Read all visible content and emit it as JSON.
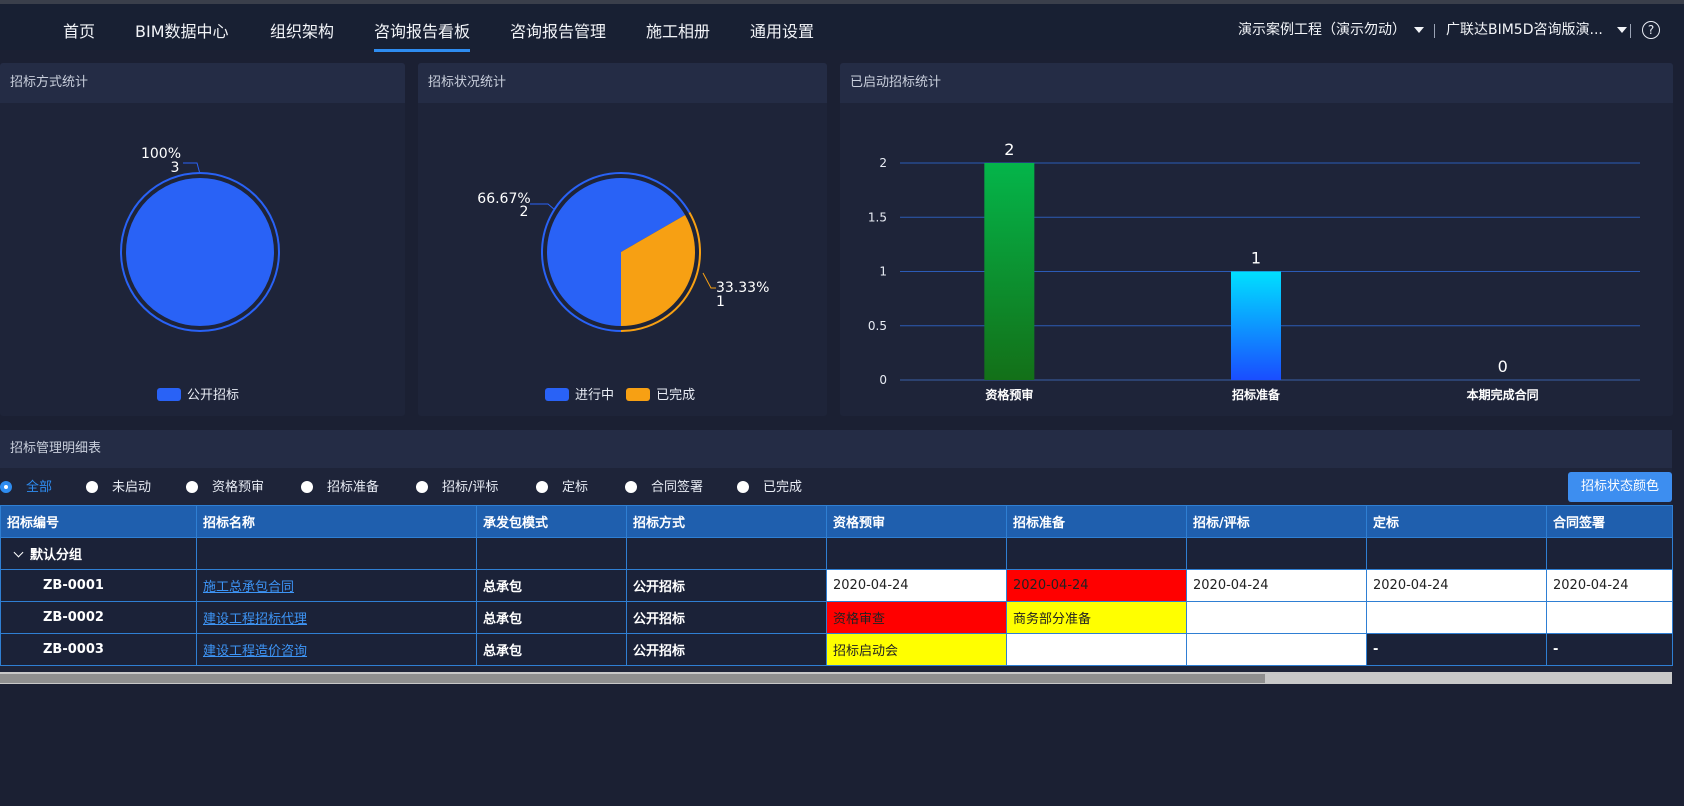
{
  "nav": {
    "items": [
      {
        "label": "首页"
      },
      {
        "label": "BIM数据中心"
      },
      {
        "label": "组织架构"
      },
      {
        "label": "咨询报告看板"
      },
      {
        "label": "咨询报告管理"
      },
      {
        "label": "施工相册"
      },
      {
        "label": "通用设置"
      }
    ],
    "active_index": 3,
    "project_select": "演示案例工程（演示勿动）",
    "org_select": "广联达BIM5D咨询版演...",
    "help_icon": "question-circle-icon"
  },
  "panels": {
    "bid_method": {
      "title": "招标方式统计",
      "chart_data": {
        "type": "pie",
        "categories": [
          "公开招标"
        ],
        "values": [
          3
        ],
        "labels": [
          {
            "percent": "100%",
            "count": "3"
          }
        ],
        "legend": [
          "公开招标"
        ],
        "colors": [
          "#2962f6"
        ]
      }
    },
    "bid_status": {
      "title": "招标状况统计",
      "chart_data": {
        "type": "pie",
        "categories": [
          "进行中",
          "已完成"
        ],
        "values": [
          2,
          1
        ],
        "labels": [
          {
            "percent": "66.67%",
            "count": "2"
          },
          {
            "percent": "33.33%",
            "count": "1"
          }
        ],
        "legend": [
          "进行中",
          "已完成"
        ],
        "colors": [
          "#2962f6",
          "#f7a013"
        ]
      }
    },
    "started": {
      "title": "已启动招标统计",
      "chart_data": {
        "type": "bar",
        "categories": [
          "资格预审",
          "招标准备",
          "本期完成合同"
        ],
        "values": [
          2,
          1,
          0
        ],
        "ylim": [
          0,
          2
        ],
        "yticks": [
          "0",
          "0.5",
          "1",
          "1.5",
          "2"
        ],
        "grid": true
      }
    }
  },
  "detail": {
    "title": "招标管理明细表",
    "filters": [
      {
        "label": "全部",
        "checked": true
      },
      {
        "label": "未启动",
        "checked": false
      },
      {
        "label": "资格预审",
        "checked": false
      },
      {
        "label": "招标准备",
        "checked": false
      },
      {
        "label": "招标/评标",
        "checked": false
      },
      {
        "label": "定标",
        "checked": false
      },
      {
        "label": "合同签署",
        "checked": false
      },
      {
        "label": "已完成",
        "checked": false
      }
    ],
    "status_color_button": "招标状态颜色",
    "columns": [
      "招标编号",
      "招标名称",
      "承发包模式",
      "招标方式",
      "资格预审",
      "招标准备",
      "招标/评标",
      "定标",
      "合同签署"
    ],
    "group_label": "默认分组",
    "rows": [
      {
        "code": "ZB-0001",
        "name": "施工总承包合同",
        "mode": "总承包",
        "method": "公开招标",
        "cells": [
          "2020-04-24",
          "2020-04-24",
          "2020-04-24",
          "2020-04-24",
          "2020-04-24"
        ]
      },
      {
        "code": "ZB-0002",
        "name": "建设工程招标代理",
        "mode": "总承包",
        "method": "公开招标",
        "cells": [
          "资格审查",
          "商务部分准备",
          "",
          "",
          ""
        ]
      },
      {
        "code": "ZB-0003",
        "name": "建设工程造价咨询",
        "mode": "总承包",
        "method": "公开招标",
        "cells": [
          "招标启动会",
          "",
          "",
          "-",
          "-"
        ]
      }
    ],
    "cell_colors": {
      "white": "#ffffff",
      "red": "#ff0000",
      "yellow": "#ffff00"
    }
  }
}
